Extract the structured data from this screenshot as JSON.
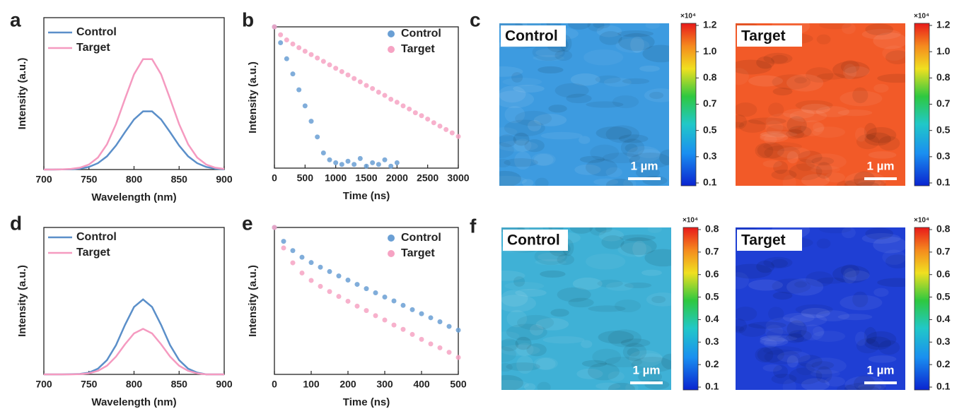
{
  "chart_data": [
    {
      "type": "line",
      "label": "a",
      "xlabel": "Wavelength (nm)",
      "ylabel": "Intensity (a.u.)",
      "x": [
        700,
        710,
        720,
        730,
        740,
        750,
        760,
        770,
        780,
        790,
        800,
        810,
        820,
        830,
        840,
        850,
        860,
        870,
        880,
        890,
        900
      ],
      "series": [
        {
          "name": "Control",
          "color": "#5b8fc9",
          "values": [
            0,
            0,
            0.001,
            0.002,
            0.006,
            0.017,
            0.042,
            0.087,
            0.158,
            0.246,
            0.33,
            0.383,
            0.383,
            0.33,
            0.246,
            0.158,
            0.087,
            0.042,
            0.017,
            0.006,
            0.002
          ]
        },
        {
          "name": "Target",
          "color": "#f59ac0",
          "values": [
            0,
            0,
            0.001,
            0.004,
            0.012,
            0.033,
            0.079,
            0.166,
            0.299,
            0.466,
            0.627,
            0.727,
            0.727,
            0.627,
            0.466,
            0.299,
            0.166,
            0.079,
            0.033,
            0.012,
            0.004
          ]
        }
      ],
      "xlim": [
        700,
        900
      ],
      "xticks": [
        700,
        750,
        800,
        850,
        900
      ],
      "ylim": [
        0,
        1
      ]
    },
    {
      "type": "scatter",
      "label": "b",
      "xlabel": "Time (ns)",
      "ylabel": "Intensity (a.u.)",
      "log_y": true,
      "x": [
        0,
        100,
        200,
        300,
        400,
        500,
        600,
        700,
        800,
        900,
        1000,
        1100,
        1200,
        1300,
        1400,
        1500,
        1600,
        1700,
        1800,
        1900,
        2000,
        2100,
        2200,
        2300,
        2400,
        2500,
        2600,
        2700,
        2800,
        2900,
        3000
      ],
      "series": [
        {
          "name": "Control",
          "color": "#6a9fd4",
          "values": [
            1,
            0.46,
            0.21,
            0.1,
            0.046,
            0.021,
            0.0099,
            0.0046,
            0.0021,
            0.0015,
            0.0013,
            0.0012,
            0.0014,
            0.0012,
            0.0016,
            0.0011,
            0.0013,
            0.0012,
            0.0015,
            0.0011,
            0.0013,
            null,
            null,
            null,
            null,
            null,
            null,
            null,
            null,
            null,
            null
          ]
        },
        {
          "name": "Target",
          "color": "#f6a3c3",
          "values": [
            1,
            0.678,
            0.527,
            0.432,
            0.361,
            0.304,
            0.258,
            0.218,
            0.185,
            0.156,
            0.132,
            0.112,
            0.095,
            0.08,
            0.068,
            0.057,
            0.049,
            0.041,
            0.035,
            0.029,
            0.025,
            0.021,
            0.018,
            0.015,
            0.013,
            0.011,
            0.0092,
            0.0078,
            0.0066,
            0.0056,
            0.0047
          ]
        }
      ],
      "xlim": [
        0,
        3000
      ],
      "xticks": [
        0,
        500,
        1000,
        1500,
        2000,
        2500,
        3000
      ],
      "ylim": [
        0.001,
        1
      ]
    },
    {
      "type": "image",
      "label": "c",
      "maps": [
        {
          "title": "Control",
          "color": "#3d9be0",
          "scale_bar": "1 µm",
          "colorbar_unit": "×10⁴",
          "colorbar_ticks": [
            0.1,
            0.3,
            0.5,
            0.7,
            0.8,
            {
              "value": 1,
              "label": "1.0"
            },
            1.2
          ]
        },
        {
          "title": "Target",
          "color": "#f25a28",
          "scale_bar": "1 µm",
          "colorbar_unit": "×10⁴",
          "colorbar_ticks": [
            0.1,
            0.3,
            0.5,
            0.7,
            0.8,
            {
              "value": 1,
              "label": "1.0"
            },
            1.2
          ]
        }
      ]
    },
    {
      "type": "line",
      "label": "d",
      "xlabel": "Wavelength (nm)",
      "ylabel": "Intensity (a.u.)",
      "x": [
        700,
        710,
        720,
        730,
        740,
        750,
        760,
        770,
        780,
        790,
        800,
        810,
        820,
        830,
        840,
        850,
        860,
        870,
        880,
        890,
        900
      ],
      "series": [
        {
          "name": "Control",
          "color": "#5b8fc9",
          "values": [
            0,
            0,
            0,
            0.001,
            0.003,
            0.012,
            0.039,
            0.097,
            0.199,
            0.337,
            0.459,
            0.51,
            0.459,
            0.337,
            0.199,
            0.097,
            0.039,
            0.012,
            0,
            0,
            0
          ]
        },
        {
          "name": "Target",
          "color": "#f59ac0",
          "values": [
            0,
            0,
            0,
            0,
            0.002,
            0.007,
            0.024,
            0.059,
            0.121,
            0.205,
            0.279,
            0.31,
            0.279,
            0.205,
            0.121,
            0.059,
            0.024,
            0.007,
            0,
            0,
            0
          ]
        }
      ],
      "xlim": [
        700,
        900
      ],
      "xticks": [
        700,
        750,
        800,
        850,
        900
      ],
      "ylim": [
        0,
        1
      ]
    },
    {
      "type": "scatter",
      "label": "e",
      "xlabel": "Time (ns)",
      "ylabel": "Intensity (a.u.)",
      "log_y": true,
      "x": [
        0,
        25,
        50,
        75,
        100,
        125,
        150,
        175,
        200,
        225,
        250,
        275,
        300,
        325,
        350,
        375,
        400,
        425,
        450,
        475,
        500
      ],
      "series": [
        {
          "name": "Control",
          "color": "#6a9fd4",
          "values": [
            1,
            0.648,
            0.484,
            0.393,
            0.333,
            0.288,
            0.251,
            0.219,
            0.192,
            0.168,
            0.147,
            0.129,
            0.113,
            0.1,
            0.087,
            0.076,
            0.067,
            0.059,
            0.052,
            0.045,
            0.04
          ]
        },
        {
          "name": "Target",
          "color": "#f6a3c3",
          "values": [
            1,
            0.526,
            0.33,
            0.24,
            0.19,
            0.158,
            0.134,
            0.115,
            0.099,
            0.085,
            0.074,
            0.063,
            0.055,
            0.047,
            0.041,
            0.035,
            0.03,
            0.026,
            0.023,
            0.02,
            0.017
          ]
        }
      ],
      "xlim": [
        0,
        500
      ],
      "xticks": [
        0,
        100,
        200,
        300,
        400,
        500
      ],
      "ylim": [
        0.01,
        1
      ]
    },
    {
      "type": "image",
      "label": "f",
      "maps": [
        {
          "title": "Control",
          "color": "#3fb1d6",
          "scale_bar": "1 µm",
          "colorbar_unit": "×10⁴",
          "colorbar_ticks": [
            0.1,
            0.2,
            0.3,
            0.4,
            0.5,
            0.6,
            0.7,
            0.8
          ]
        },
        {
          "title": "Target",
          "color": "#1f3fd4",
          "scale_bar": "1 µm",
          "colorbar_unit": "×10⁴",
          "colorbar_ticks": [
            0.1,
            0.2,
            0.3,
            0.4,
            0.5,
            0.6,
            0.7,
            0.8
          ]
        }
      ]
    }
  ]
}
